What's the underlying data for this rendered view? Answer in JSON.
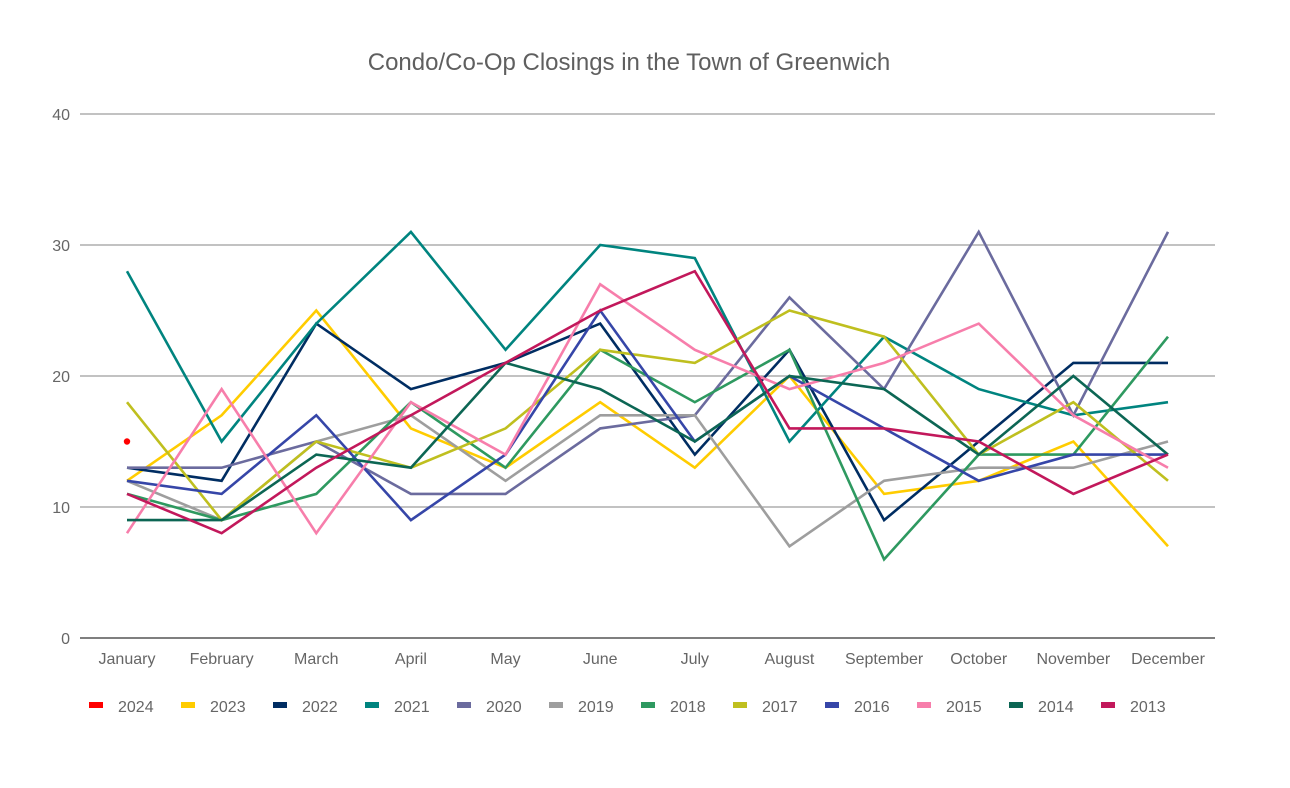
{
  "chart_data": {
    "type": "line",
    "title": "Condo/Co-Op Closings in the Town of Greenwich",
    "xlabel": "",
    "ylabel": "",
    "ylim": [
      0,
      40
    ],
    "yticks": [
      0,
      10,
      20,
      30,
      40
    ],
    "grid": true,
    "legend_position": "bottom-left",
    "categories": [
      "January",
      "February",
      "March",
      "April",
      "May",
      "June",
      "July",
      "August",
      "September",
      "October",
      "November",
      "December"
    ],
    "series": [
      {
        "name": "2024",
        "color": "#ff0000",
        "values": [
          15,
          null,
          null,
          null,
          null,
          null,
          null,
          null,
          null,
          null,
          null,
          null
        ]
      },
      {
        "name": "2023",
        "color": "#ffcc00",
        "values": [
          12,
          17,
          25,
          16,
          13,
          18,
          13,
          20,
          11,
          12,
          15,
          7
        ]
      },
      {
        "name": "2022",
        "color": "#002d62",
        "values": [
          13,
          12,
          24,
          19,
          21,
          24,
          14,
          22,
          9,
          15,
          21,
          21
        ]
      },
      {
        "name": "2021",
        "color": "#00847f",
        "values": [
          28,
          15,
          24,
          31,
          22,
          30,
          29,
          15,
          23,
          19,
          17,
          18
        ]
      },
      {
        "name": "2020",
        "color": "#6b6b9e",
        "values": [
          13,
          13,
          15,
          11,
          11,
          16,
          17,
          26,
          19,
          31,
          17,
          31
        ]
      },
      {
        "name": "2019",
        "color": "#9e9e9e",
        "values": [
          12,
          9,
          15,
          17,
          12,
          17,
          17,
          7,
          12,
          13,
          13,
          15
        ]
      },
      {
        "name": "2018",
        "color": "#2e9960",
        "values": [
          11,
          9,
          11,
          18,
          13,
          22,
          18,
          22,
          6,
          14,
          14,
          23
        ]
      },
      {
        "name": "2017",
        "color": "#bfbf1f",
        "values": [
          18,
          9,
          15,
          13,
          16,
          22,
          21,
          25,
          23,
          14,
          18,
          12
        ]
      },
      {
        "name": "2016",
        "color": "#3646a8",
        "values": [
          12,
          11,
          17,
          9,
          14,
          25,
          15,
          20,
          16,
          12,
          14,
          14
        ]
      },
      {
        "name": "2015",
        "color": "#f77eab",
        "values": [
          8,
          19,
          8,
          18,
          14,
          27,
          22,
          19,
          21,
          24,
          17,
          13
        ]
      },
      {
        "name": "2014",
        "color": "#0c6654",
        "values": [
          9,
          9,
          14,
          13,
          21,
          19,
          15,
          20,
          19,
          14,
          20,
          14
        ]
      },
      {
        "name": "2013",
        "color": "#c2185b",
        "values": [
          11,
          8,
          13,
          17,
          21,
          25,
          28,
          16,
          16,
          15,
          11,
          14
        ]
      }
    ]
  }
}
